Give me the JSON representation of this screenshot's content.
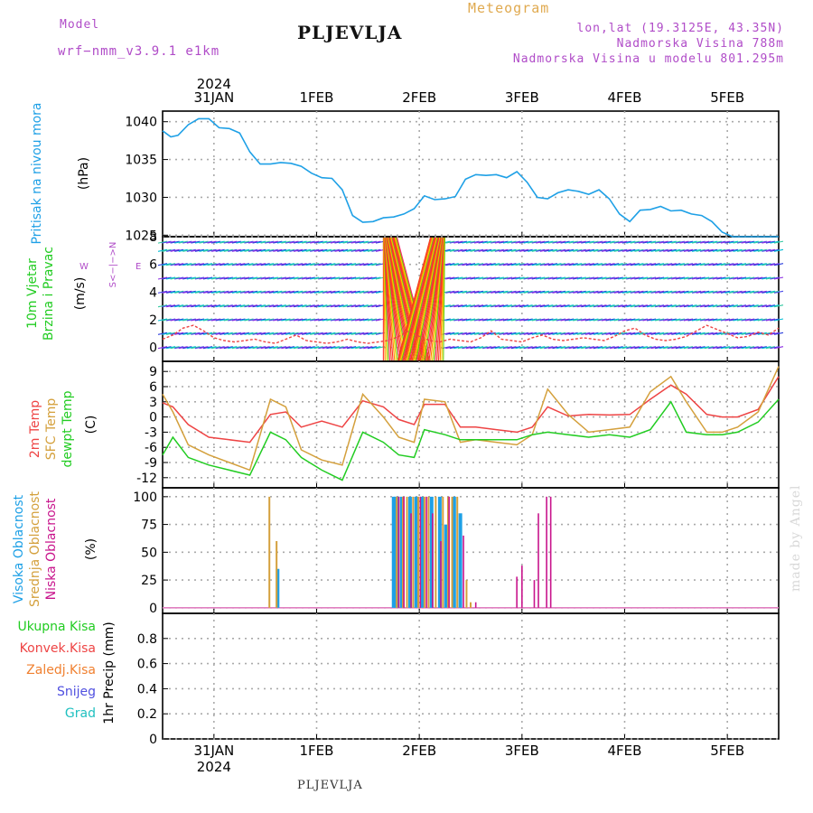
{
  "header": {
    "model_label": "Model",
    "model_name": "wrf−nmm_v3.9.1  e1km",
    "title": "PLJEVLJA",
    "meteogram": "Meteogram",
    "lonlat": "lon,lat (19.3125E, 43.35N)",
    "elevation": "Nadmorska Visina 788m",
    "elevation_model": "Nadmorska Visina u modelu 801.295m"
  },
  "footer": {
    "station": "PLJEVLJA"
  },
  "watermark": "made by Angel",
  "time_axis": {
    "range": [
      0,
      6.0
    ],
    "date_ticks": [
      {
        "x": 0.5,
        "label": "31JAN"
      },
      {
        "x": 1.5,
        "label": "1FEB"
      },
      {
        "x": 2.5,
        "label": "2FEB"
      },
      {
        "x": 3.5,
        "label": "3FEB"
      },
      {
        "x": 4.5,
        "label": "4FEB"
      },
      {
        "x": 5.5,
        "label": "5FEB"
      }
    ],
    "year_label": "2024"
  },
  "colors": {
    "pressure": "#1ea0e6",
    "temp2m": "#ee4444",
    "sfc_temp": "#d4a03c",
    "dewpoint": "#22cc22",
    "cloud_high": "#1ea0e6",
    "cloud_mid": "#d4a03c",
    "cloud_low": "#c8148c",
    "grid": "#aaaaaa",
    "label_purple": "#b04cc8",
    "label_orange": "#e0aa50"
  },
  "chart_data": [
    {
      "id": "pressure",
      "type": "line",
      "ylabel_lines": [
        "Pritisak na nivou mora"
      ],
      "unit": "(hPa)",
      "ylim": [
        1024.8,
        1041.4
      ],
      "yticks": [
        1025,
        1030,
        1035,
        1040
      ],
      "series": [
        {
          "x": [
            0,
            0.08,
            0.15,
            0.25,
            0.35,
            0.45,
            0.55,
            0.65,
            0.75,
            0.85,
            0.95,
            1.05,
            1.15,
            1.25,
            1.35,
            1.45,
            1.55,
            1.65,
            1.75,
            1.85,
            1.95,
            2.05,
            2.15,
            2.25,
            2.35,
            2.45,
            2.55,
            2.65,
            2.75,
            2.85,
            2.95,
            3.05,
            3.15,
            3.25,
            3.35,
            3.45,
            3.55,
            3.65,
            3.75,
            3.85,
            3.95,
            4.05,
            4.15,
            4.25,
            4.35,
            4.45,
            4.55,
            4.65,
            4.75,
            4.85,
            4.95,
            5.05,
            5.15,
            5.25,
            5.35,
            5.45,
            5.55,
            5.65,
            5.75,
            5.85,
            5.95,
            6.0
          ],
          "y": [
            1038.8,
            1038.0,
            1038.2,
            1039.6,
            1040.4,
            1040.4,
            1039.2,
            1039.1,
            1038.5,
            1036.0,
            1034.4,
            1034.4,
            1034.6,
            1034.5,
            1034.1,
            1033.2,
            1032.6,
            1032.5,
            1031.0,
            1027.6,
            1026.7,
            1026.8,
            1027.3,
            1027.4,
            1027.8,
            1028.5,
            1030.2,
            1029.7,
            1029.8,
            1030.1,
            1032.4,
            1033.0,
            1032.9,
            1033.0,
            1032.6,
            1033.4,
            1032.0,
            1030.0,
            1029.8,
            1030.6,
            1031.0,
            1030.8,
            1030.4,
            1031.0,
            1029.8,
            1027.8,
            1026.8,
            1028.3,
            1028.4,
            1028.8,
            1028.2,
            1028.3,
            1027.8,
            1027.6,
            1026.8,
            1025.4,
            1024.8,
            1024.8,
            1024.8,
            1024.8,
            1024.8,
            1024.8
          ]
        }
      ]
    },
    {
      "id": "wind",
      "type": "scatter",
      "ylabel_lines": [
        "10m Vjetar",
        "Brzina i Pravac"
      ],
      "unit": "(m/s)",
      "ylim": [
        -1,
        8
      ],
      "yticks": [
        0,
        2,
        4,
        6,
        8
      ],
      "compass": {
        "n": "N",
        "w": "W",
        "e": "E",
        "s": "S"
      },
      "speed": {
        "x": [
          0,
          0.1,
          0.2,
          0.3,
          0.4,
          0.5,
          0.6,
          0.7,
          0.8,
          0.9,
          1.0,
          1.1,
          1.2,
          1.3,
          1.4,
          1.5,
          1.6,
          1.7,
          1.8,
          1.9,
          2.0,
          2.1,
          2.2,
          2.3,
          2.4,
          2.5,
          2.6,
          2.7,
          2.8,
          2.9,
          3.0,
          3.1,
          3.2,
          3.3,
          3.4,
          3.5,
          3.6,
          3.7,
          3.8,
          3.9,
          4.0,
          4.1,
          4.2,
          4.3,
          4.4,
          4.5,
          4.6,
          4.7,
          4.8,
          4.9,
          5.0,
          5.1,
          5.2,
          5.3,
          5.4,
          5.5,
          5.6,
          5.7,
          5.8,
          5.9,
          6.0
        ],
        "y": [
          0.6,
          0.9,
          1.4,
          1.6,
          1.2,
          0.7,
          0.5,
          0.4,
          0.5,
          0.6,
          0.4,
          0.3,
          0.6,
          0.9,
          0.5,
          0.4,
          0.3,
          0.4,
          0.6,
          0.4,
          0.3,
          0.4,
          0.5,
          0.8,
          1.2,
          0.8,
          0.5,
          0.4,
          0.6,
          0.5,
          0.4,
          0.7,
          1.2,
          0.6,
          0.5,
          0.4,
          0.7,
          0.9,
          0.6,
          0.5,
          0.6,
          0.7,
          0.6,
          0.5,
          0.8,
          1.2,
          1.4,
          0.9,
          0.6,
          0.5,
          0.6,
          0.8,
          1.2,
          1.6,
          1.3,
          1.0,
          0.7,
          0.8,
          1.1,
          0.9,
          1.4
        ]
      },
      "gust_band": [
        2.15,
        2.75
      ]
    },
    {
      "id": "temperature",
      "type": "line",
      "ylabel_lines": [
        "2m Temp",
        "SFC Temp",
        "dewpt Temp"
      ],
      "unit": "(C)",
      "ylim": [
        -14,
        11
      ],
      "yticks": [
        -12,
        -9,
        -6,
        -3,
        0,
        3,
        6,
        9
      ],
      "series": [
        {
          "name": "2m Temp",
          "x": [
            0,
            0.1,
            0.25,
            0.45,
            0.65,
            0.85,
            1.05,
            1.2,
            1.35,
            1.55,
            1.75,
            1.95,
            2.15,
            2.3,
            2.45,
            2.55,
            2.75,
            2.9,
            3.05,
            3.25,
            3.45,
            3.6,
            3.75,
            3.95,
            4.15,
            4.35,
            4.55,
            4.75,
            4.95,
            5.1,
            5.3,
            5.45,
            5.6,
            5.8,
            6.0
          ],
          "y": [
            2.8,
            2.0,
            -1.5,
            -4.0,
            -4.5,
            -5.0,
            0.5,
            1.0,
            -2.0,
            -0.8,
            -2.0,
            3.2,
            2.0,
            -0.5,
            -1.5,
            2.5,
            2.5,
            -2.0,
            -2.0,
            -2.5,
            -3.0,
            -2.0,
            2.0,
            0.2,
            0.5,
            0.4,
            0.5,
            3.5,
            6.3,
            4.5,
            0.5,
            0.0,
            0.0,
            1.5,
            8.0
          ]
        },
        {
          "name": "SFC Temp",
          "x": [
            0,
            0.1,
            0.25,
            0.45,
            0.65,
            0.85,
            1.05,
            1.2,
            1.35,
            1.55,
            1.75,
            1.95,
            2.15,
            2.3,
            2.45,
            2.55,
            2.75,
            2.9,
            3.05,
            3.25,
            3.45,
            3.6,
            3.75,
            3.95,
            4.15,
            4.35,
            4.55,
            4.75,
            4.95,
            5.1,
            5.3,
            5.45,
            5.6,
            5.8,
            6.0
          ],
          "y": [
            4.5,
            1.0,
            -5.5,
            -7.5,
            -9.0,
            -10.5,
            3.5,
            2.0,
            -6.5,
            -8.5,
            -9.5,
            4.5,
            0.0,
            -4.0,
            -5.0,
            3.5,
            3.0,
            -5.0,
            -4.5,
            -5.0,
            -5.5,
            -3.5,
            5.5,
            0.5,
            -3.0,
            -2.5,
            -2.0,
            5.0,
            8.0,
            3.0,
            -3.0,
            -3.0,
            -2.0,
            1.0,
            10.0
          ]
        },
        {
          "name": "dewpt Temp",
          "x": [
            0,
            0.1,
            0.25,
            0.45,
            0.65,
            0.85,
            1.05,
            1.2,
            1.35,
            1.55,
            1.75,
            1.95,
            2.15,
            2.3,
            2.45,
            2.55,
            2.75,
            2.9,
            3.05,
            3.25,
            3.45,
            3.6,
            3.75,
            3.95,
            4.15,
            4.35,
            4.55,
            4.75,
            4.95,
            5.1,
            5.3,
            5.45,
            5.6,
            5.8,
            6.0
          ],
          "y": [
            -7.5,
            -4.0,
            -8.0,
            -9.5,
            -10.5,
            -11.5,
            -3.0,
            -4.5,
            -8.0,
            -10.5,
            -12.5,
            -3.0,
            -5.0,
            -7.5,
            -8.0,
            -2.5,
            -3.5,
            -4.5,
            -4.5,
            -4.5,
            -4.5,
            -3.5,
            -3.0,
            -3.5,
            -4.0,
            -3.5,
            -4.0,
            -2.5,
            3.0,
            -3.0,
            -3.5,
            -3.5,
            -3.0,
            -1.0,
            3.5
          ]
        }
      ]
    },
    {
      "id": "clouds",
      "type": "bar",
      "ylabel_lines": [
        "Visoka Oblacnost",
        "Srednja Oblacnost",
        "Niska Oblacnost"
      ],
      "unit": "(%)",
      "ylim": [
        -5,
        108
      ],
      "yticks": [
        0,
        25,
        50,
        75,
        100
      ],
      "series": [
        {
          "name": "Visoka Oblacnost",
          "x": [
            1.12,
            2.25,
            2.27,
            2.29,
            2.33,
            2.41,
            2.47,
            2.53,
            2.62,
            2.7,
            2.76,
            2.84,
            2.9
          ],
          "values": [
            35,
            100,
            100,
            100,
            100,
            100,
            100,
            100,
            100,
            100,
            75,
            100,
            85
          ]
        },
        {
          "name": "Srednja Oblacnost",
          "x": [
            1.04,
            1.11,
            2.28,
            2.34,
            2.38,
            2.44,
            2.49,
            2.55,
            2.59,
            2.66,
            2.73,
            2.78,
            2.82,
            2.87,
            2.96,
            3.0
          ],
          "values": [
            100,
            60,
            100,
            100,
            100,
            100,
            100,
            100,
            100,
            100,
            100,
            100,
            100,
            100,
            25,
            5
          ]
        },
        {
          "name": "Niska Oblacnost",
          "x": [
            2.3,
            2.35,
            2.42,
            2.51,
            2.57,
            2.63,
            2.71,
            2.79,
            2.93,
            3.05,
            3.45,
            3.5,
            3.62,
            3.66,
            3.74,
            3.78
          ],
          "values": [
            100,
            100,
            85,
            100,
            100,
            85,
            60,
            100,
            65,
            5,
            28,
            38,
            25,
            85,
            100,
            100
          ]
        }
      ]
    },
    {
      "id": "precip",
      "type": "bar",
      "ylabel_lines": [
        "1hr Precip (mm)"
      ],
      "unit": "",
      "ylim": [
        0,
        1.0
      ],
      "yticks": [
        0,
        0.2,
        0.4,
        0.6,
        0.8
      ],
      "legend": [
        {
          "label": "Ukupna  Kisa",
          "color": "#22cc22"
        },
        {
          "label": "Konvek.Kisa",
          "color": "#ee4444"
        },
        {
          "label": "Zaledj.Kisa",
          "color": "#f08030"
        },
        {
          "label": "Snijeg",
          "color": "#5050e0"
        },
        {
          "label": "Grad",
          "color": "#20c0c0"
        }
      ],
      "series": []
    }
  ]
}
